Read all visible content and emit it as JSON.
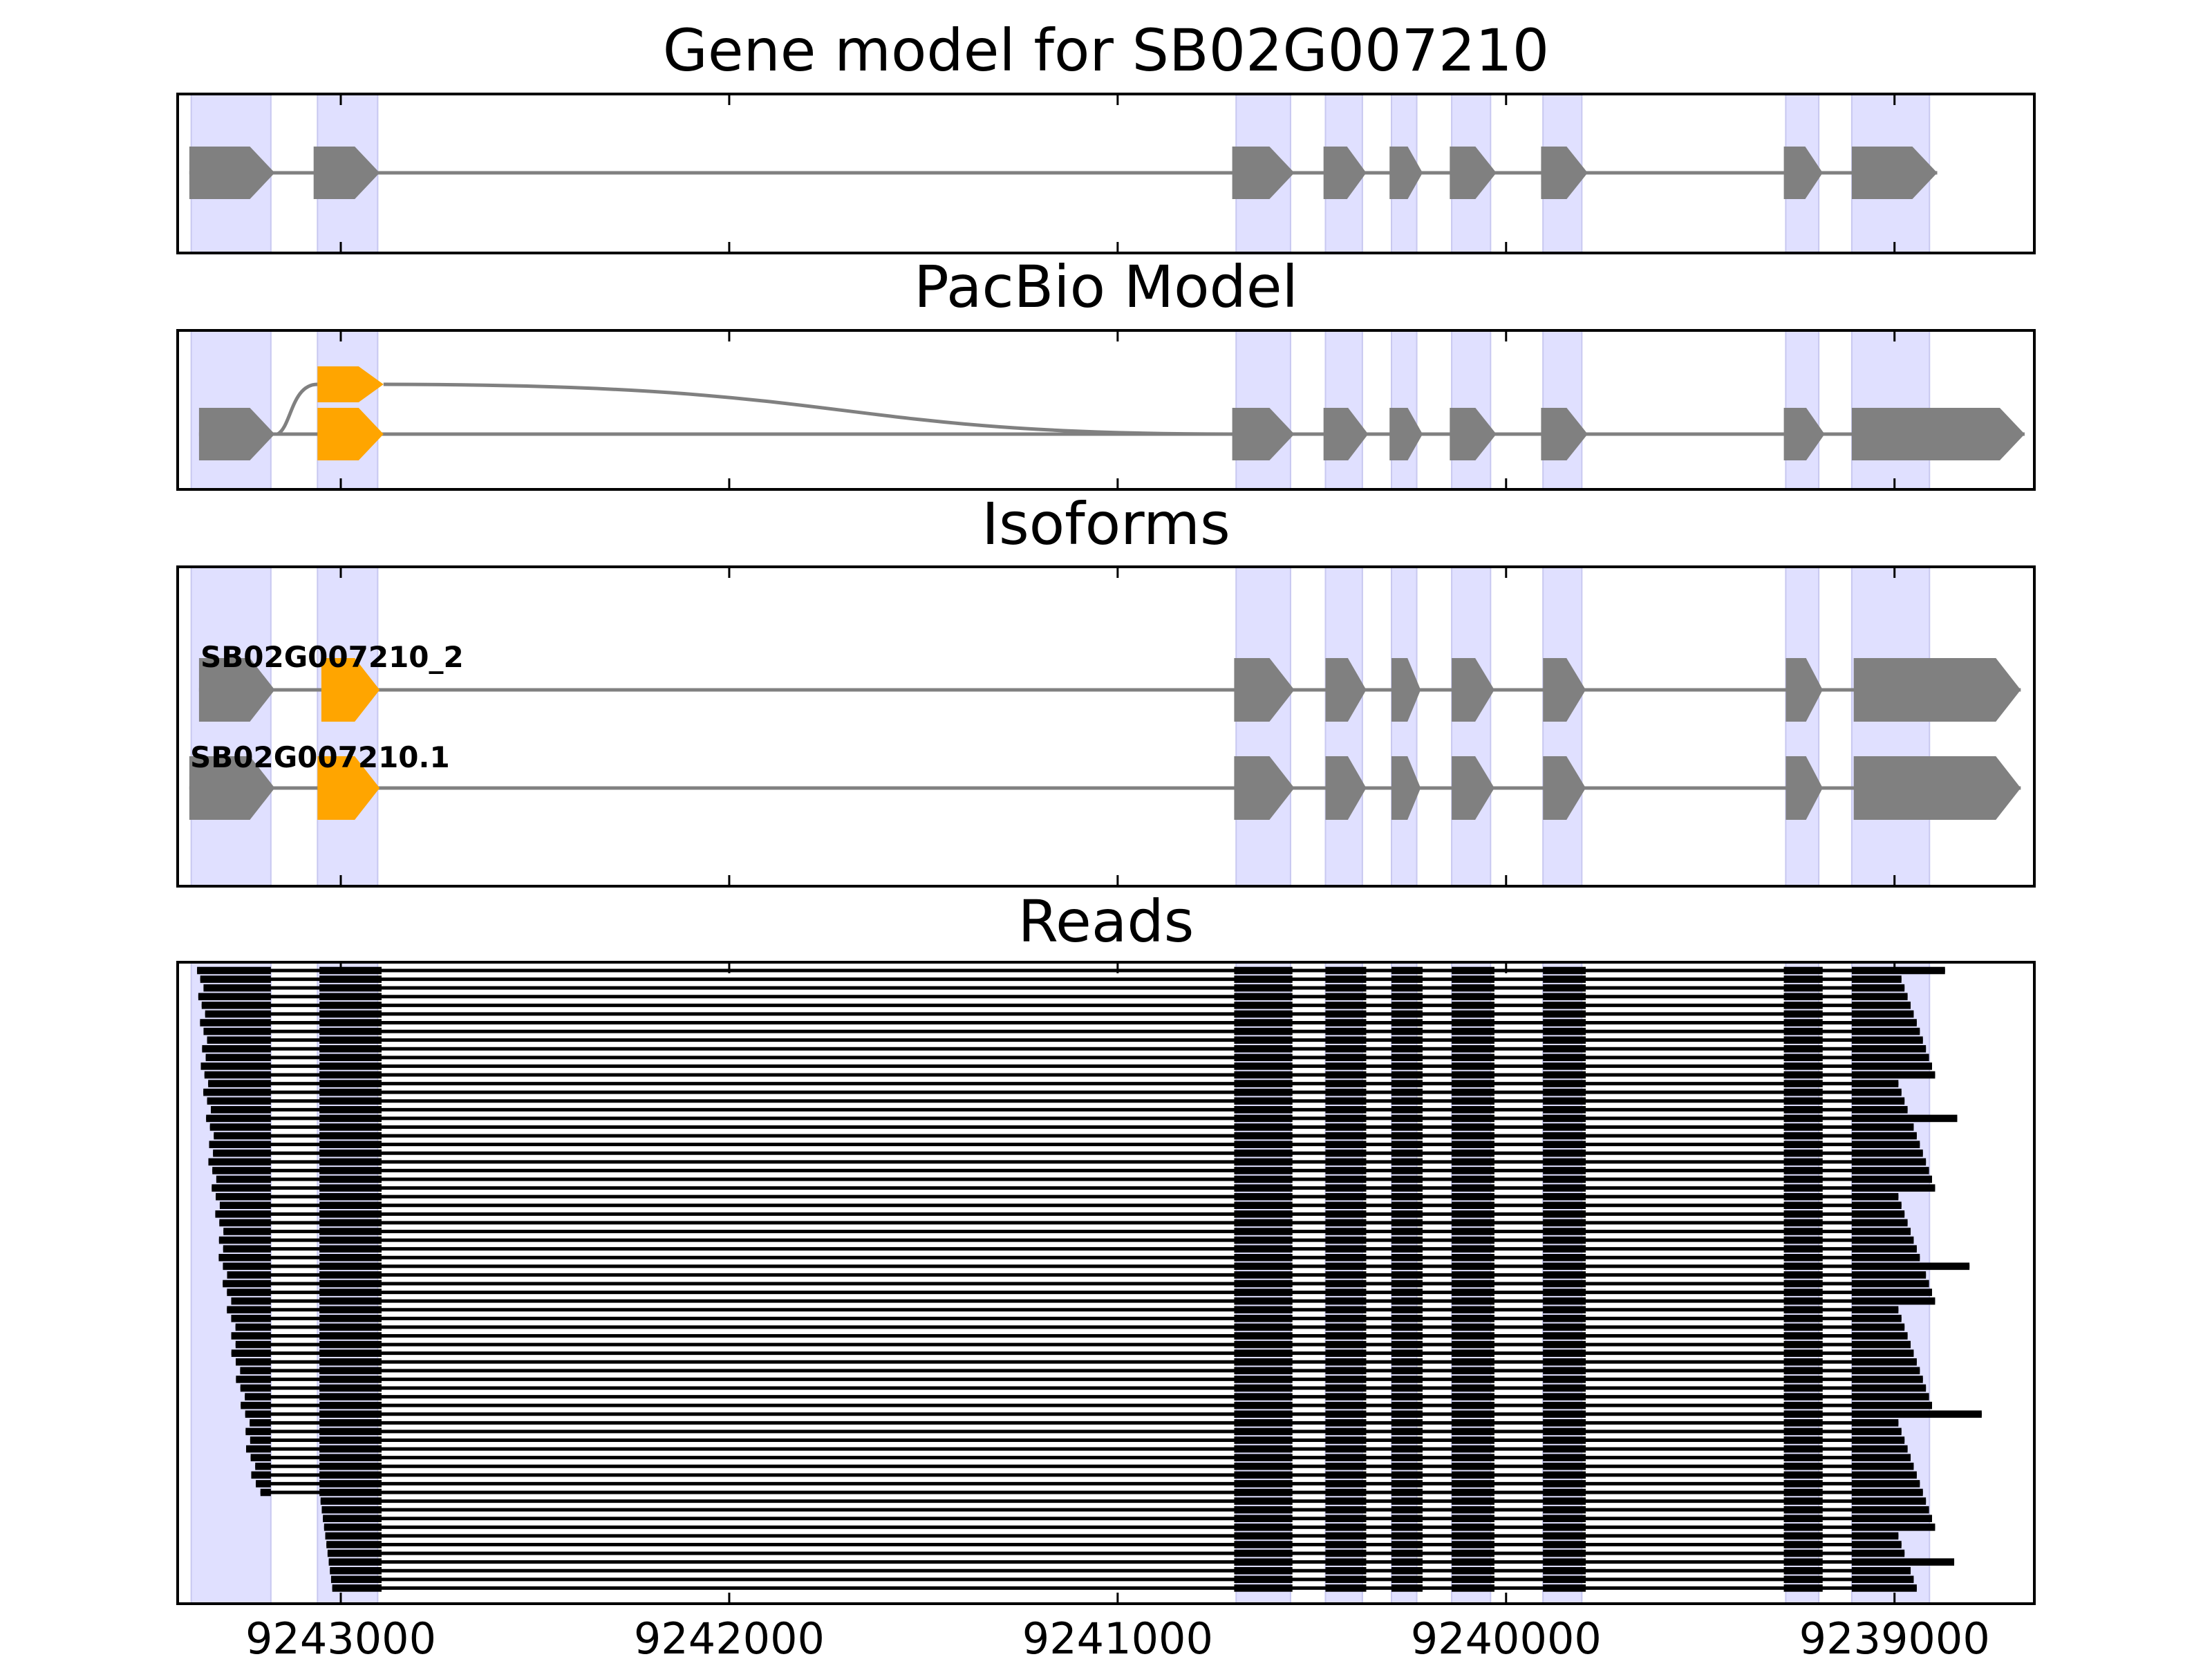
{
  "colors": {
    "exon": "#808080",
    "intron": "#808080",
    "alt_exon": "#FFA500",
    "highlight": "#E0E0FF",
    "read": "#000000",
    "frame": "#000000"
  },
  "chart_data": {
    "type": "gene-model",
    "xlim": [
      9243420,
      9238640
    ],
    "x_direction": "reversed",
    "x_ticks": [
      9243000,
      9242000,
      9241000,
      9240000,
      9239000
    ],
    "x_tick_labels": [
      "9243000",
      "9242000",
      "9241000",
      "9240000",
      "9239000"
    ],
    "exon_highlights": [
      [
        9243385,
        9243180
      ],
      [
        9243060,
        9242905
      ],
      [
        9240695,
        9240555
      ],
      [
        9240465,
        9240370
      ],
      [
        9240295,
        9240230
      ],
      [
        9240140,
        9240040
      ],
      [
        9239905,
        9239805
      ],
      [
        9239280,
        9239195
      ],
      [
        9239110,
        9238910
      ]
    ],
    "panels": [
      {
        "title": "Gene model for SB02G007210",
        "tracks": [
          {
            "label": "",
            "exons": [
              [
                9243390,
                9243170,
                "normal"
              ],
              [
                9243070,
                9242900,
                "normal"
              ],
              [
                9240705,
                9240545,
                "normal"
              ],
              [
                9240470,
                9240360,
                "normal"
              ],
              [
                9240300,
                9240215,
                "normal"
              ],
              [
                9240145,
                9240025,
                "normal"
              ],
              [
                9239910,
                9239790,
                "normal"
              ],
              [
                9239285,
                9239185,
                "normal"
              ],
              [
                9239110,
                9238890,
                "normal"
              ]
            ]
          }
        ]
      },
      {
        "title": "PacBio Model",
        "tracks": [
          {
            "label": "",
            "exons": [
              [
                9243365,
                9243170,
                "normal"
              ],
              [
                9243060,
                9242890,
                "alt"
              ],
              [
                9240705,
                9240545,
                "normal"
              ],
              [
                9240470,
                9240355,
                "normal"
              ],
              [
                9240300,
                9240215,
                "normal"
              ],
              [
                9240145,
                9240025,
                "normal"
              ],
              [
                9239910,
                9239790,
                "normal"
              ],
              [
                9239285,
                9239180,
                "normal"
              ],
              [
                9239110,
                9238665,
                "normal"
              ]
            ]
          }
        ],
        "alt_branch": {
          "exon": [
            9243060,
            9242890,
            "alt"
          ],
          "from": 9243170,
          "to": 9240705
        }
      },
      {
        "title": "Isoforms",
        "tracks": [
          {
            "label": "SB02G007210_2",
            "exons": [
              [
                9243365,
                9243170,
                "normal"
              ],
              [
                9243050,
                9242900,
                "alt"
              ],
              [
                9240700,
                9240545,
                "normal"
              ],
              [
                9240465,
                9240360,
                "normal"
              ],
              [
                9240295,
                9240220,
                "normal"
              ],
              [
                9240140,
                9240030,
                "normal"
              ],
              [
                9239905,
                9239795,
                "normal"
              ],
              [
                9239280,
                9239185,
                "normal"
              ],
              [
                9239105,
                9238675,
                "normal"
              ]
            ]
          },
          {
            "label": "SB02G007210.1",
            "exons": [
              [
                9243390,
                9243170,
                "normal"
              ],
              [
                9243060,
                9242900,
                "alt"
              ],
              [
                9240700,
                9240545,
                "normal"
              ],
              [
                9240465,
                9240360,
                "normal"
              ],
              [
                9240295,
                9240220,
                "normal"
              ],
              [
                9240140,
                9240030,
                "normal"
              ],
              [
                9239905,
                9239795,
                "normal"
              ],
              [
                9239280,
                9239185,
                "normal"
              ],
              [
                9239105,
                9238675,
                "normal"
              ]
            ]
          }
        ]
      },
      {
        "title": "Reads",
        "read_count": 72,
        "read_exons": [
          [
            9243055,
            9242895
          ],
          [
            9240700,
            9240550
          ],
          [
            9240465,
            9240360
          ],
          [
            9240295,
            9240215
          ],
          [
            9240140,
            9240030
          ],
          [
            9239905,
            9239795
          ],
          [
            9239285,
            9239185
          ]
        ],
        "read_start_range": [
          9243370,
          9243180
        ],
        "read_end_range": [
          9238990,
          9238720
        ],
        "read_start_missing_beyond": 60
      }
    ]
  }
}
